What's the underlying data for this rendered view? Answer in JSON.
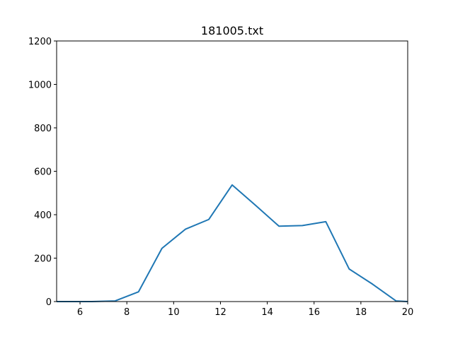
{
  "chart_data": {
    "type": "line",
    "title": "181005.txt",
    "xlabel": "",
    "ylabel": "",
    "xlim": [
      5,
      20
    ],
    "ylim": [
      0,
      1200
    ],
    "x_ticks": [
      6,
      8,
      10,
      12,
      14,
      16,
      18,
      20
    ],
    "y_ticks": [
      0,
      200,
      400,
      600,
      800,
      1000,
      1200
    ],
    "grid": false,
    "series": [
      {
        "color": "#1f77b4",
        "x": [
          5.0,
          5.5,
          6.5,
          7.5,
          8.5,
          9.5,
          10.5,
          11.5,
          12.5,
          13.5,
          14.5,
          15.5,
          16.5,
          17.5,
          18.5,
          19.5,
          20.0
        ],
        "y": [
          0,
          0,
          0,
          3,
          45,
          245,
          333,
          378,
          537,
          443,
          347,
          350,
          368,
          150,
          80,
          3,
          0
        ]
      }
    ]
  }
}
